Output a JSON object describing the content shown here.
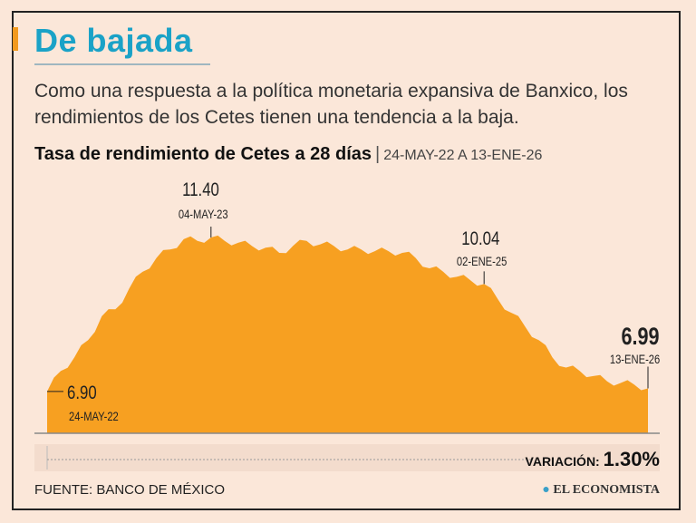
{
  "header": {
    "title": "De bajada",
    "subtitle": "Como una respuesta a la política monetaria expansiva de Banxico, los rendimientos de los Cetes tienen una tendencia a la baja."
  },
  "chart_data": {
    "type": "area",
    "title": "Tasa de rendimiento de Cetes a 28 días",
    "subtitle": "24-MAY-22 A 13-ENE-26",
    "color": "#f7a021",
    "ylim": [
      5.68,
      11.4
    ],
    "x": [
      "2022-05-24",
      "2022-06",
      "2022-07",
      "2022-08",
      "2022-09",
      "2022-10",
      "2022-11",
      "2022-12",
      "2023-01",
      "2023-02",
      "2023-03",
      "2023-04",
      "2023-05-04",
      "2023-06",
      "2023-07",
      "2023-08",
      "2023-09",
      "2023-10",
      "2023-11",
      "2023-12",
      "2024-01",
      "2024-02",
      "2024-03",
      "2024-04",
      "2024-05",
      "2024-06",
      "2024-07",
      "2024-08",
      "2024-09",
      "2024-10",
      "2024-11",
      "2024-12",
      "2025-01-02",
      "2025-02",
      "2025-03",
      "2025-04",
      "2025-05",
      "2025-06",
      "2025-07",
      "2025-08",
      "2025-09",
      "2025-10",
      "2025-11",
      "2025-12",
      "2026-01-13"
    ],
    "values": [
      6.9,
      7.5,
      7.9,
      8.4,
      9.1,
      9.3,
      9.9,
      10.4,
      10.8,
      11.05,
      11.35,
      11.3,
      11.4,
      11.3,
      11.25,
      11.15,
      11.1,
      10.95,
      11.15,
      11.3,
      11.2,
      11.15,
      11.05,
      11.05,
      11.0,
      11.0,
      10.95,
      10.8,
      10.5,
      10.4,
      10.25,
      10.15,
      10.04,
      9.6,
      9.2,
      8.8,
      8.4,
      7.9,
      7.6,
      7.5,
      7.35,
      7.2,
      7.15,
      7.1,
      6.99
    ],
    "annotations": [
      {
        "value": "6.90",
        "date": "24-MAY-22"
      },
      {
        "value": "11.40",
        "date": "04-MAY-23"
      },
      {
        "value": "10.04",
        "date": "02-ENE-25"
      },
      {
        "value": "6.99",
        "date": "13-ENE-26"
      }
    ],
    "variation": {
      "label": "VARIACIÓN:",
      "value": "1.30%"
    }
  },
  "footer": {
    "source": "FUENTE: BANCO DE MÉXICO",
    "logo": "EL ECONOMISTA"
  }
}
